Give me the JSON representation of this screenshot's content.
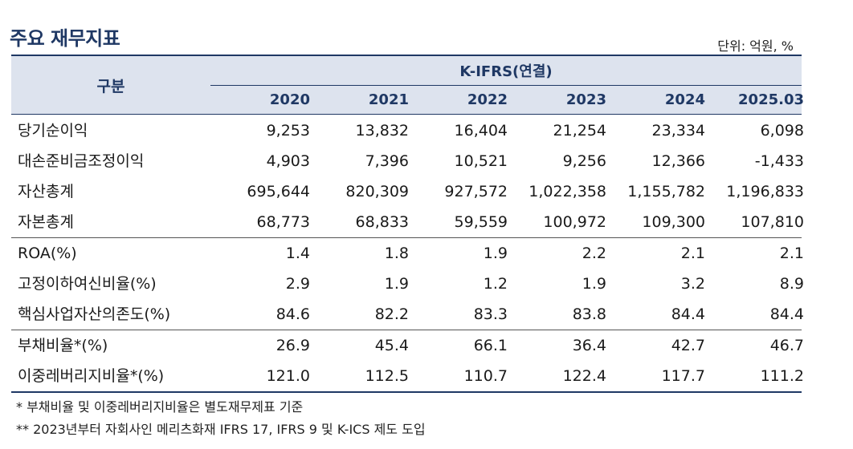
{
  "title": "주요 재무지표",
  "unit": "단위: 억원, %",
  "header": {
    "row_label": "구분",
    "group": "K-IFRS(연결)",
    "years": [
      "2020",
      "2021",
      "2022",
      "2023",
      "2024",
      "2025.03"
    ]
  },
  "rows": [
    {
      "label": "당기순이익",
      "values": [
        "9,253",
        "13,832",
        "16,404",
        "21,254",
        "23,334",
        "6,098"
      ]
    },
    {
      "label": "대손준비금조정이익",
      "values": [
        "4,903",
        "7,396",
        "10,521",
        "9,256",
        "12,366",
        "-1,433"
      ]
    },
    {
      "label": "자산총계",
      "values": [
        "695,644",
        "820,309",
        "927,572",
        "1,022,358",
        "1,155,782",
        "1,196,833"
      ]
    },
    {
      "label": "자본총계",
      "values": [
        "68,773",
        "68,833",
        "59,559",
        "100,972",
        "109,300",
        "107,810"
      ]
    },
    {
      "label": "ROA(%)",
      "values": [
        "1.4",
        "1.8",
        "1.9",
        "2.2",
        "2.1",
        "2.1"
      ]
    },
    {
      "label": "고정이하여신비율(%)",
      "values": [
        "2.9",
        "1.9",
        "1.2",
        "1.9",
        "3.2",
        "8.9"
      ]
    },
    {
      "label": "핵심사업자산의존도(%)",
      "values": [
        "84.6",
        "82.2",
        "83.3",
        "83.8",
        "84.4",
        "84.4"
      ]
    },
    {
      "label": "부채비율*(%)",
      "values": [
        "26.9",
        "45.4",
        "66.1",
        "36.4",
        "42.7",
        "46.7"
      ]
    },
    {
      "label": "이중레버리지비율*(%)",
      "values": [
        "121.0",
        "112.5",
        "110.7",
        "122.4",
        "117.7",
        "111.2"
      ]
    }
  ],
  "notes": [
    "* 부채비율 및 이중레버리지비율은 별도재무제표 기준",
    "** 2023년부터 자회사인 메리츠화재 IFRS 17, IFRS 9 및 K-ICS 제도 도입"
  ]
}
